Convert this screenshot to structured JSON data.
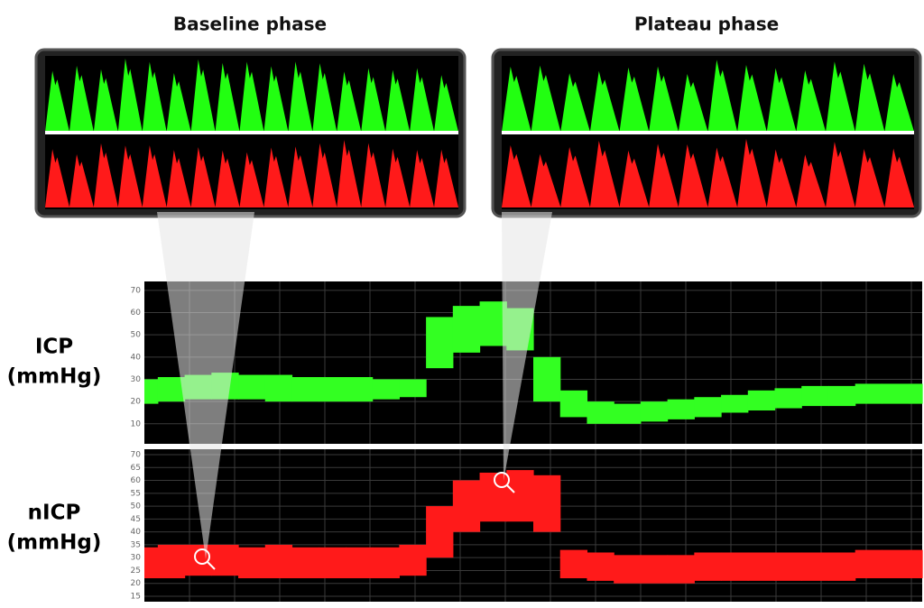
{
  "insets": [
    {
      "title": "Baseline phase"
    },
    {
      "title": "Plateau phase"
    }
  ],
  "chart_data": [
    {
      "type": "band",
      "ylabel": [
        "ICP",
        "(mmHg)"
      ],
      "color": "#33ff22",
      "categories": [
        null,
        null,
        null,
        null,
        null,
        null,
        null,
        null,
        null,
        null,
        null,
        null,
        null,
        null,
        null,
        null,
        null,
        null,
        null,
        null,
        null,
        null,
        null,
        null,
        null,
        null,
        null,
        null,
        null,
        null
      ],
      "low": [
        19,
        20,
        21,
        21,
        21,
        20,
        20,
        20,
        20,
        21,
        22,
        35,
        42,
        45,
        43,
        20,
        13,
        10,
        10,
        11,
        12,
        13,
        15,
        16,
        17,
        18,
        18,
        19,
        19,
        19
      ],
      "high": [
        30,
        31,
        32,
        33,
        32,
        32,
        31,
        31,
        31,
        30,
        30,
        58,
        63,
        65,
        62,
        40,
        25,
        20,
        19,
        20,
        21,
        22,
        23,
        25,
        26,
        27,
        27,
        28,
        28,
        28
      ],
      "ylim": [
        1,
        74
      ],
      "yticks": [
        10,
        20,
        30,
        40,
        50,
        60,
        70
      ],
      "grid": true
    },
    {
      "type": "band",
      "ylabel": [
        "nICP",
        "(mmHg)"
      ],
      "color": "#ff1a1a",
      "categories": [
        null,
        null,
        null,
        null,
        null,
        null,
        null,
        null,
        null,
        null,
        null,
        null,
        null,
        null,
        null,
        null,
        null,
        null,
        null,
        null,
        null,
        null,
        null,
        null,
        null,
        null,
        null,
        null,
        null,
        null
      ],
      "low": [
        22,
        22,
        23,
        23,
        22,
        22,
        22,
        22,
        22,
        22,
        23,
        30,
        40,
        44,
        44,
        40,
        22,
        21,
        20,
        20,
        20,
        21,
        21,
        21,
        21,
        21,
        21,
        22,
        22,
        22
      ],
      "high": [
        34,
        35,
        35,
        35,
        34,
        35,
        34,
        34,
        34,
        34,
        35,
        50,
        60,
        63,
        64,
        62,
        33,
        32,
        31,
        31,
        31,
        32,
        32,
        32,
        32,
        32,
        32,
        33,
        33,
        33
      ],
      "ylim": [
        12.9,
        72.1
      ],
      "yticks": [
        15,
        20,
        25,
        30,
        35,
        40,
        45,
        50,
        55,
        60,
        65,
        70
      ],
      "grid": true
    }
  ]
}
